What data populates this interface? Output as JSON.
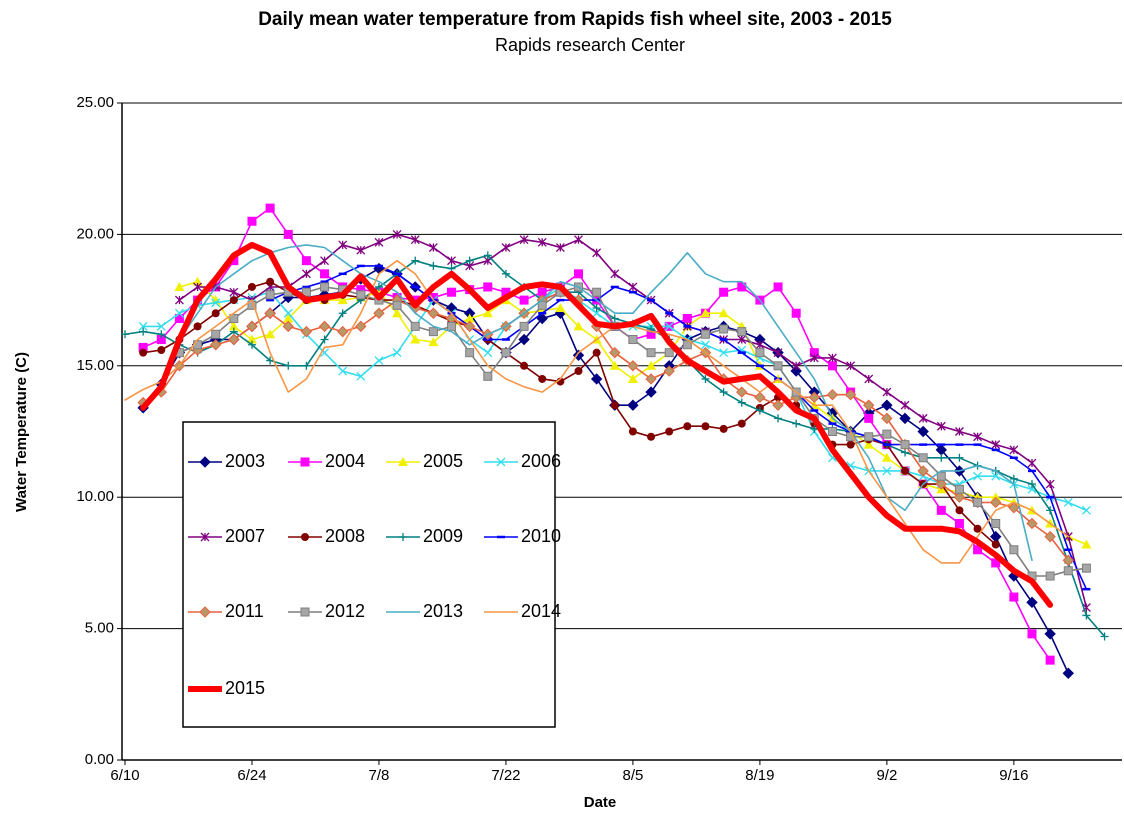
{
  "chart_data": {
    "type": "line",
    "title": "Daily mean water temperature from Rapids fish wheel site, 2003  - 2015",
    "subtitle": "Rapids research Center",
    "x_label": "Date",
    "y_label": "Water Temperature (C)",
    "categories": [
      "6/10",
      null,
      null,
      null,
      null,
      null,
      null,
      "6/24",
      null,
      null,
      null,
      null,
      null,
      null,
      "7/8",
      null,
      null,
      null,
      null,
      null,
      null,
      "7/22",
      null,
      null,
      null,
      null,
      null,
      null,
      "8/5",
      null,
      null,
      null,
      null,
      null,
      null,
      "8/19",
      null,
      null,
      null,
      null,
      null,
      null,
      "9/2",
      null,
      null,
      null,
      null,
      null,
      null,
      "9/16",
      null,
      null,
      null,
      null,
      null
    ],
    "ylim": [
      0,
      25
    ],
    "yticks": [
      {
        "value": 0,
        "label": "0.00"
      },
      {
        "value": 5,
        "label": "5.00"
      },
      {
        "value": 10,
        "label": "10.00"
      },
      {
        "value": 15,
        "label": "15.00"
      },
      {
        "value": 20,
        "label": "20.00"
      },
      {
        "value": 25,
        "label": "25.00"
      }
    ],
    "grid": true,
    "series": [
      {
        "name": "2003",
        "color": "#000080",
        "marker": "diamond",
        "values": [
          null,
          13.4,
          14.3,
          15.5,
          15.8,
          16.0,
          16.0,
          16.5,
          17.0,
          17.6,
          17.6,
          17.7,
          17.8,
          18.3,
          18.7,
          18.5,
          18.0,
          17.5,
          17.2,
          17.0,
          16.0,
          15.5,
          16.0,
          16.8,
          17.0,
          15.4,
          14.5,
          13.5,
          13.5,
          14.0,
          15.0,
          16.0,
          16.3,
          16.5,
          16.3,
          16.0,
          15.5,
          14.8,
          14.0,
          13.2,
          12.5,
          13.2,
          13.5,
          13.0,
          12.5,
          11.8,
          11.0,
          10.0,
          8.5,
          7.0,
          6.0,
          4.8,
          3.3,
          null,
          null
        ]
      },
      {
        "name": "2004",
        "color": "#ff00ff",
        "marker": "square",
        "values": [
          null,
          15.7,
          16.0,
          16.8,
          17.5,
          18.0,
          19.0,
          20.5,
          21.0,
          20.0,
          19.0,
          18.5,
          18.0,
          17.9,
          17.8,
          17.6,
          17.5,
          17.6,
          17.8,
          17.9,
          18.0,
          17.8,
          17.5,
          17.8,
          18.0,
          18.5,
          17.5,
          16.5,
          16.0,
          16.2,
          16.5,
          16.8,
          17.0,
          17.8,
          18.0,
          17.5,
          18.0,
          17.0,
          15.5,
          15.0,
          14.0,
          13.0,
          12.0,
          11.0,
          10.5,
          9.5,
          9.0,
          8.0,
          7.5,
          6.2,
          4.8,
          3.8,
          null,
          null,
          null
        ]
      },
      {
        "name": "2005",
        "color": "#f0f000",
        "marker": "triangle",
        "values": [
          null,
          null,
          null,
          18.0,
          18.2,
          17.5,
          16.5,
          16.0,
          16.2,
          16.8,
          17.5,
          17.5,
          17.5,
          17.6,
          17.8,
          17.0,
          16.0,
          15.9,
          16.5,
          16.8,
          17.0,
          17.5,
          17.0,
          17.1,
          17.2,
          16.5,
          16.0,
          15.0,
          14.5,
          15.0,
          15.5,
          16.5,
          17.0,
          17.0,
          16.5,
          15.0,
          14.5,
          14.0,
          13.5,
          13.0,
          12.5,
          12.0,
          11.5,
          11.0,
          10.5,
          10.3,
          10.2,
          10.0,
          10.0,
          9.8,
          9.5,
          9.0,
          8.5,
          8.2,
          null
        ]
      },
      {
        "name": "2006",
        "color": "#33ddee",
        "marker": "x",
        "values": [
          null,
          16.5,
          16.5,
          17.0,
          17.3,
          17.4,
          17.5,
          17.6,
          17.8,
          17.0,
          16.2,
          15.5,
          14.8,
          14.6,
          15.2,
          15.5,
          16.5,
          17.5,
          17.0,
          16.0,
          15.5,
          16.5,
          17.0,
          17.5,
          18.0,
          17.5,
          17.0,
          16.5,
          16.5,
          16.5,
          16.5,
          16.0,
          15.8,
          15.5,
          15.6,
          15.3,
          15.0,
          14.0,
          12.5,
          11.5,
          11.2,
          11.0,
          11.0,
          11.0,
          10.8,
          10.5,
          10.5,
          10.8,
          10.8,
          10.5,
          10.3,
          10.0,
          9.8,
          9.5,
          null
        ]
      },
      {
        "name": "2007",
        "color": "#800080",
        "marker": "asterisk",
        "values": [
          null,
          null,
          null,
          17.5,
          18.0,
          18.0,
          17.8,
          17.5,
          18.0,
          18.0,
          18.5,
          19.0,
          19.6,
          19.4,
          19.7,
          20.0,
          19.8,
          19.5,
          19.0,
          18.8,
          19.0,
          19.5,
          19.8,
          19.7,
          19.5,
          19.8,
          19.3,
          18.5,
          18.0,
          17.5,
          17.0,
          16.5,
          16.3,
          16.0,
          16.0,
          15.8,
          15.5,
          15.0,
          15.3,
          15.3,
          15.0,
          14.5,
          14.0,
          13.5,
          13.0,
          12.7,
          12.5,
          12.3,
          12.0,
          11.8,
          11.3,
          10.5,
          8.5,
          5.8,
          null
        ]
      },
      {
        "name": "2008",
        "color": "#800000",
        "marker": "circle",
        "values": [
          null,
          15.5,
          15.6,
          16.0,
          16.5,
          17.0,
          17.5,
          18.0,
          18.2,
          17.8,
          17.5,
          17.5,
          17.7,
          17.6,
          17.5,
          17.5,
          17.3,
          17.0,
          16.7,
          16.5,
          16.0,
          15.5,
          15.0,
          14.5,
          14.4,
          14.8,
          15.5,
          13.5,
          12.5,
          12.3,
          12.5,
          12.7,
          12.7,
          12.6,
          12.8,
          13.4,
          13.8,
          13.5,
          12.8,
          12.0,
          12.0,
          12.2,
          12.0,
          11.0,
          10.5,
          10.5,
          9.5,
          8.8,
          8.2,
          null,
          null,
          null,
          null,
          null,
          null
        ]
      },
      {
        "name": "2009",
        "color": "#008080",
        "marker": "plus",
        "values": [
          16.2,
          16.3,
          16.2,
          15.8,
          15.5,
          15.8,
          16.3,
          15.8,
          15.2,
          15.0,
          15.0,
          16.0,
          17.0,
          17.5,
          18.0,
          18.5,
          19.0,
          18.8,
          18.7,
          19.0,
          19.2,
          18.5,
          18.0,
          17.5,
          17.8,
          17.8,
          17.2,
          16.8,
          16.6,
          16.4,
          16.0,
          15.2,
          14.5,
          14.0,
          13.6,
          13.3,
          13.0,
          12.8,
          12.6,
          12.6,
          12.5,
          12.3,
          12.0,
          11.7,
          11.5,
          11.5,
          11.5,
          11.2,
          11.0,
          10.7,
          10.5,
          9.5,
          7.5,
          5.5,
          4.7
        ]
      },
      {
        "name": "2010",
        "color": "#0000ff",
        "marker": "dash",
        "values": [
          null,
          null,
          null,
          null,
          null,
          null,
          null,
          null,
          17.5,
          17.8,
          18.0,
          18.2,
          18.5,
          18.8,
          18.8,
          18.5,
          18.0,
          17.5,
          17.0,
          16.5,
          16.0,
          16.0,
          16.5,
          17.0,
          17.5,
          17.5,
          17.5,
          18.0,
          17.8,
          17.5,
          17.0,
          16.5,
          16.3,
          16.0,
          15.5,
          15.0,
          14.5,
          14.0,
          13.3,
          12.8,
          12.5,
          12.3,
          12.0,
          12.0,
          12.0,
          12.0,
          12.0,
          12.0,
          11.8,
          11.5,
          11.0,
          10.0,
          8.0,
          6.5,
          null
        ]
      },
      {
        "name": "2011",
        "color": "#e8603c",
        "fill": "#b89868",
        "marker": "diamond",
        "values": [
          null,
          13.6,
          14.0,
          15.0,
          15.6,
          15.8,
          16.0,
          16.5,
          17.0,
          16.5,
          16.3,
          16.5,
          16.3,
          16.5,
          17.0,
          17.5,
          17.2,
          17.0,
          16.8,
          16.5,
          16.2,
          16.5,
          17.0,
          17.5,
          17.8,
          17.5,
          16.5,
          15.5,
          15.0,
          14.5,
          14.8,
          15.2,
          15.5,
          14.5,
          14.0,
          13.8,
          13.5,
          13.8,
          13.8,
          13.9,
          13.9,
          13.5,
          13.0,
          12.0,
          11.0,
          10.5,
          10.0,
          9.8,
          9.8,
          9.6,
          9.0,
          8.5,
          7.6,
          null,
          null
        ]
      },
      {
        "name": "2012",
        "color": "#7f7f7f",
        "fill": "#a6a6a6",
        "marker": "square",
        "values": [
          null,
          null,
          null,
          15.5,
          15.8,
          16.2,
          16.8,
          17.3,
          17.7,
          17.8,
          17.8,
          18.0,
          17.9,
          17.7,
          17.5,
          17.3,
          16.5,
          16.3,
          16.5,
          15.5,
          14.6,
          15.5,
          16.5,
          17.3,
          17.8,
          18.0,
          17.8,
          16.5,
          16.0,
          15.5,
          15.5,
          15.8,
          16.2,
          16.4,
          16.3,
          15.5,
          15.0,
          14.0,
          13.0,
          12.5,
          12.3,
          12.3,
          12.4,
          12.0,
          11.5,
          10.8,
          10.3,
          9.8,
          9.0,
          8.0,
          7.0,
          7.0,
          7.2,
          7.3,
          null
        ]
      },
      {
        "name": "2013",
        "color": "#4bacc6",
        "marker": "none",
        "values": [
          null,
          null,
          null,
          16.0,
          17.0,
          18.0,
          18.5,
          19.0,
          19.3,
          19.5,
          19.6,
          19.5,
          19.0,
          18.5,
          18.2,
          17.8,
          17.0,
          16.5,
          16.3,
          15.8,
          16.2,
          16.5,
          17.0,
          17.5,
          18.2,
          18.0,
          17.5,
          17.0,
          17.0,
          17.8,
          18.5,
          19.3,
          18.5,
          18.2,
          18.2,
          17.5,
          16.5,
          15.5,
          14.5,
          13.0,
          12.5,
          11.5,
          10.0,
          9.5,
          10.5,
          11.0,
          11.0,
          11.2,
          11.0,
          10.5,
          7.6,
          null,
          null,
          null,
          null
        ]
      },
      {
        "name": "2014",
        "color": "#f79646",
        "marker": "none",
        "values": [
          13.7,
          14.1,
          14.4,
          15.0,
          16.0,
          16.5,
          17.0,
          17.5,
          15.5,
          14.0,
          14.5,
          15.7,
          15.8,
          17.0,
          18.5,
          19.0,
          18.5,
          17.5,
          17.0,
          16.0,
          15.0,
          14.5,
          14.2,
          14.0,
          14.5,
          15.5,
          16.0,
          16.5,
          16.5,
          16.3,
          16.2,
          16.0,
          15.5,
          15.0,
          14.5,
          14.0,
          14.5,
          14.0,
          13.5,
          13.5,
          12.5,
          11.0,
          10.0,
          9.0,
          8.0,
          7.5,
          7.5,
          8.5,
          9.5,
          9.8,
          9.5,
          9.0,
          8.5,
          null,
          null
        ]
      },
      {
        "name": "2015",
        "color": "#ff0000",
        "marker": "none",
        "line_width": 6,
        "values": [
          null,
          13.4,
          14.2,
          16.0,
          17.5,
          18.3,
          19.2,
          19.6,
          19.3,
          18.0,
          17.5,
          17.6,
          17.7,
          18.4,
          17.6,
          18.3,
          17.3,
          18.0,
          18.5,
          17.9,
          17.2,
          17.6,
          18.0,
          18.1,
          18.0,
          17.3,
          16.6,
          16.5,
          16.6,
          16.9,
          15.9,
          15.2,
          14.8,
          14.4,
          14.5,
          14.6,
          14.0,
          13.3,
          13.0,
          11.8,
          10.9,
          10.0,
          9.3,
          8.8,
          8.8,
          8.8,
          8.7,
          8.3,
          7.8,
          7.2,
          6.8,
          5.9,
          null,
          null,
          null
        ]
      }
    ]
  }
}
